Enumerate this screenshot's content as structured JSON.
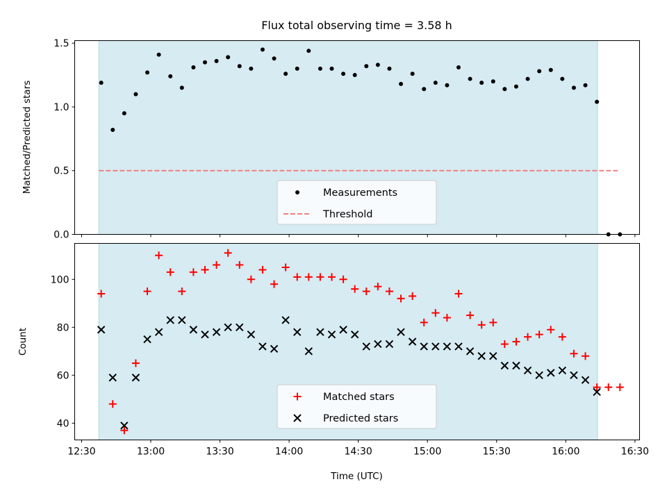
{
  "title": "Flux total observing time = 3.58 h",
  "colors": {
    "shade": "#add8e6",
    "measurement": "#000000",
    "threshold": "#f08080",
    "matched": "#ff0000",
    "predicted": "#000000"
  },
  "xaxis": {
    "label": "Time (UTC)",
    "ticks": [
      "12:30",
      "13:00",
      "13:30",
      "14:00",
      "14:30",
      "15:00",
      "15:30",
      "16:00",
      "16:30"
    ]
  },
  "chart_data": [
    {
      "type": "scatter",
      "title": "Flux total observing time = 3.58 h",
      "ylabel": "Matched/Predicted stars",
      "xlabel": "",
      "xlim_minutes": [
        747,
        992
      ],
      "ylim": [
        0,
        1.52
      ],
      "yticks": [
        0.0,
        0.5,
        1.0,
        1.5
      ],
      "shaded_interval_minutes": [
        757.5,
        973.8
      ],
      "legend": {
        "position": "lower-center",
        "entries": [
          "Measurements",
          "Threshold"
        ]
      },
      "threshold": {
        "name": "Threshold",
        "value": 0.5,
        "x_range_minutes": [
          757.5,
          983.5
        ]
      },
      "series": [
        {
          "name": "Measurements",
          "marker": "dot",
          "x_minutes": [
            758.5,
            763.5,
            768.5,
            773.5,
            778.5,
            783.5,
            788.5,
            793.5,
            798.5,
            803.5,
            808.5,
            813.5,
            818.5,
            823.5,
            828.5,
            833.5,
            838.5,
            843.5,
            848.5,
            853.5,
            858.5,
            863.5,
            868.5,
            873.5,
            878.5,
            883.5,
            888.5,
            893.5,
            898.5,
            903.5,
            908.5,
            913.5,
            918.5,
            923.5,
            928.5,
            933.5,
            938.5,
            943.5,
            948.5,
            953.5,
            958.5,
            963.5,
            968.5,
            973.5,
            978.5,
            983.5
          ],
          "values": [
            1.19,
            0.82,
            0.95,
            1.1,
            1.27,
            1.41,
            1.24,
            1.15,
            1.31,
            1.35,
            1.36,
            1.39,
            1.32,
            1.3,
            1.45,
            1.38,
            1.26,
            1.3,
            1.44,
            1.3,
            1.3,
            1.26,
            1.25,
            1.32,
            1.33,
            1.3,
            1.18,
            1.26,
            1.14,
            1.19,
            1.17,
            1.31,
            1.22,
            1.19,
            1.2,
            1.14,
            1.16,
            1.22,
            1.28,
            1.29,
            1.22,
            1.15,
            1.17,
            1.04,
            0.0,
            0.0
          ]
        }
      ]
    },
    {
      "type": "scatter",
      "ylabel": "Count",
      "xlabel": "Time (UTC)",
      "xlim_minutes": [
        747,
        992
      ],
      "ylim": [
        33,
        115
      ],
      "yticks": [
        40,
        60,
        80,
        100
      ],
      "shaded_interval_minutes": [
        757.5,
        973.8
      ],
      "legend": {
        "position": "lower-center",
        "entries": [
          "Matched stars",
          "Predicted stars"
        ]
      },
      "series": [
        {
          "name": "Matched stars",
          "marker": "plus",
          "x_minutes": [
            758.5,
            763.5,
            768.5,
            773.5,
            778.5,
            783.5,
            788.5,
            793.5,
            798.5,
            803.5,
            808.5,
            813.5,
            818.5,
            823.5,
            828.5,
            833.5,
            838.5,
            843.5,
            848.5,
            853.5,
            858.5,
            863.5,
            868.5,
            873.5,
            878.5,
            883.5,
            888.5,
            893.5,
            898.5,
            903.5,
            908.5,
            913.5,
            918.5,
            923.5,
            928.5,
            933.5,
            938.5,
            943.5,
            948.5,
            953.5,
            958.5,
            963.5,
            968.5,
            973.5,
            978.5,
            983.5
          ],
          "values": [
            94,
            48,
            37,
            65,
            95,
            110,
            103,
            95,
            103,
            104,
            106,
            111,
            106,
            100,
            104,
            98,
            105,
            101,
            101,
            101,
            101,
            100,
            96,
            95,
            97,
            95,
            92,
            93,
            82,
            86,
            84,
            94,
            85,
            81,
            82,
            73,
            74,
            76,
            77,
            79,
            76,
            69,
            68,
            55,
            55,
            55
          ]
        },
        {
          "name": "Predicted stars",
          "marker": "x",
          "x_minutes": [
            758.5,
            763.5,
            768.5,
            773.5,
            778.5,
            783.5,
            788.5,
            793.5,
            798.5,
            803.5,
            808.5,
            813.5,
            818.5,
            823.5,
            828.5,
            833.5,
            838.5,
            843.5,
            848.5,
            853.5,
            858.5,
            863.5,
            868.5,
            873.5,
            878.5,
            883.5,
            888.5,
            893.5,
            898.5,
            903.5,
            908.5,
            913.5,
            918.5,
            923.5,
            928.5,
            933.5,
            938.5,
            943.5,
            948.5,
            953.5,
            958.5,
            963.5,
            968.5,
            973.5
          ],
          "values": [
            79,
            59,
            39,
            59,
            75,
            78,
            83,
            83,
            79,
            77,
            78,
            80,
            80,
            77,
            72,
            71,
            83,
            78,
            70,
            78,
            77,
            79,
            77,
            72,
            73,
            73,
            78,
            74,
            72,
            72,
            72,
            72,
            70,
            68,
            68,
            64,
            64,
            62,
            60,
            61,
            62,
            60,
            58,
            53
          ]
        }
      ]
    }
  ]
}
